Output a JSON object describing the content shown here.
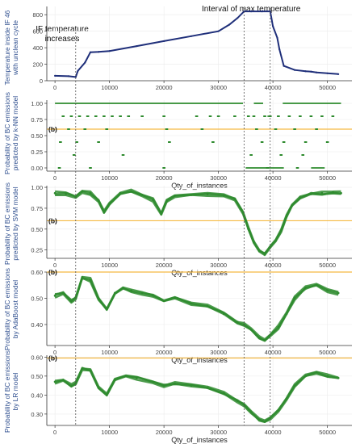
{
  "annotations": {
    "if_temperature": "IF temperature increases",
    "max_temperature": "Interval of max temperature"
  },
  "markers": {
    "b_label": "(b)",
    "if_line_x": 3800,
    "max_start_x": 34700,
    "max_end_x": 39500
  },
  "colors": {
    "temperature_line": "#1f2f7a",
    "probability_points": "#2e8b2e",
    "threshold": "#f5b942",
    "ylabel": "#2f4f8f",
    "marker_lines": "#555555"
  },
  "chart_data": [
    {
      "type": "line",
      "xlabel": "",
      "ylabel": "Temperature inside IF 46 with unclean cycle",
      "xlim": [
        -1500,
        54500
      ],
      "ylim": [
        0,
        900
      ],
      "xticks": [
        0,
        10000,
        20000,
        30000,
        40000,
        50000
      ],
      "yticks": [
        0,
        200,
        400,
        600,
        800
      ],
      "series": [
        {
          "x": [
            0,
            2500,
            3800,
            4200,
            5500,
            6500,
            8000,
            10000,
            15000,
            20000,
            25000,
            30000,
            32000,
            33500,
            34700,
            36000,
            38000,
            39500,
            40000,
            40800,
            41200,
            42000,
            44000,
            46000,
            47000,
            48000,
            50000,
            52000
          ],
          "y": [
            60,
            55,
            45,
            120,
            220,
            345,
            350,
            360,
            420,
            480,
            540,
            600,
            680,
            760,
            840,
            840,
            840,
            840,
            660,
            520,
            380,
            180,
            130,
            115,
            110,
            100,
            90,
            80
          ]
        }
      ]
    },
    {
      "type": "scatter",
      "xlabel": "Qty_of_instances",
      "ylabel": "Probability of BC emissions predicted by k-NN model",
      "xlim": [
        -1500,
        54500
      ],
      "ylim": [
        -0.05,
        1.05
      ],
      "xticks": [
        0,
        10000,
        20000,
        30000,
        40000,
        50000
      ],
      "yticks": [
        0.0,
        0.25,
        0.5,
        0.75,
        1.0
      ],
      "threshold": 0.6,
      "label": "(b)",
      "segments": [
        {
          "x0": 0,
          "x1": 34500,
          "y": 1.0
        },
        {
          "x0": 36500,
          "x1": 38200,
          "y": 1.0
        },
        {
          "x0": 41800,
          "x1": 52500,
          "y": 1.0
        },
        {
          "x0": 39000,
          "x1": 39400,
          "y": 0.8
        },
        {
          "x0": 35000,
          "x1": 42000,
          "y": 0.0
        },
        {
          "x0": 47000,
          "x1": 49500,
          "y": 0.0
        }
      ],
      "points": {
        "x": [
          1500,
          3000,
          4500,
          6000,
          7500,
          9000,
          10500,
          12000,
          13500,
          16000,
          20000,
          26000,
          28500,
          30000,
          33000,
          35500,
          36500,
          38500,
          39500,
          41000,
          43000,
          45000,
          47000,
          49000,
          51000,
          2500,
          5500,
          9500,
          20500,
          27000,
          37000,
          40500,
          44000,
          48000,
          1000,
          4000,
          8000,
          21000,
          29000,
          38000,
          42000,
          46000,
          50000,
          3500,
          12500,
          36000,
          41500,
          45500,
          800,
          6500,
          20000,
          39000,
          44500
        ],
        "y": [
          0.8,
          0.8,
          0.8,
          0.8,
          0.8,
          0.8,
          0.8,
          0.8,
          0.8,
          0.8,
          0.8,
          0.8,
          0.8,
          0.8,
          0.8,
          0.8,
          0.8,
          0.8,
          0.8,
          0.8,
          0.8,
          0.8,
          0.8,
          0.8,
          0.8,
          0.6,
          0.6,
          0.6,
          0.6,
          0.6,
          0.6,
          0.6,
          0.6,
          0.6,
          0.4,
          0.4,
          0.4,
          0.4,
          0.4,
          0.4,
          0.4,
          0.4,
          0.4,
          0.2,
          0.2,
          0.2,
          0.2,
          0.2,
          0.0,
          0.0,
          0.0,
          0.0,
          0.0
        ]
      }
    },
    {
      "type": "line",
      "xlabel": "Qty_of_instances",
      "ylabel": "Probability of BC emissions predicted by SVM model",
      "xlim": [
        -1500,
        54500
      ],
      "ylim": [
        0.15,
        1.02
      ],
      "xticks": [
        0,
        10000,
        20000,
        30000,
        40000,
        50000
      ],
      "yticks": [
        0.25,
        0.5,
        0.75,
        1.0
      ],
      "threshold": 0.6,
      "label": "(b)",
      "series": [
        {
          "x": [
            0,
            2000,
            3800,
            5000,
            6500,
            8000,
            9000,
            10000,
            12000,
            14000,
            16000,
            18000,
            19500,
            20500,
            22000,
            25000,
            28000,
            31000,
            33000,
            34500,
            35500,
            36500,
            37500,
            38500,
            39500,
            40500,
            41500,
            42500,
            43500,
            45000,
            47000,
            49000,
            51000,
            52500
          ],
          "y": [
            0.93,
            0.92,
            0.88,
            0.95,
            0.93,
            0.84,
            0.7,
            0.8,
            0.93,
            0.95,
            0.91,
            0.85,
            0.68,
            0.83,
            0.9,
            0.91,
            0.92,
            0.9,
            0.86,
            0.7,
            0.5,
            0.35,
            0.24,
            0.2,
            0.28,
            0.36,
            0.48,
            0.65,
            0.78,
            0.88,
            0.92,
            0.93,
            0.94,
            0.93
          ]
        }
      ]
    },
    {
      "type": "line",
      "xlabel": "Qty_of_instances",
      "ylabel": "Probability of BC emissions by AdaBoost model",
      "xlim": [
        -1500,
        54500
      ],
      "ylim": [
        0.32,
        0.6
      ],
      "xticks": [
        0,
        10000,
        20000,
        30000,
        40000,
        50000
      ],
      "yticks": [
        0.4,
        0.5,
        0.6
      ],
      "threshold": 0.6,
      "label": "(b)",
      "series": [
        {
          "x": [
            0,
            1500,
            3000,
            3800,
            5000,
            6500,
            8000,
            9500,
            11000,
            12500,
            14000,
            16000,
            18000,
            20000,
            22000,
            25000,
            28000,
            31000,
            33500,
            34700,
            36000,
            37500,
            38500,
            39500,
            41000,
            42500,
            44000,
            46000,
            48000,
            50000,
            52000
          ],
          "y": [
            0.51,
            0.52,
            0.49,
            0.5,
            0.58,
            0.57,
            0.5,
            0.46,
            0.52,
            0.54,
            0.53,
            0.52,
            0.51,
            0.49,
            0.5,
            0.48,
            0.47,
            0.44,
            0.41,
            0.4,
            0.38,
            0.35,
            0.34,
            0.36,
            0.39,
            0.44,
            0.5,
            0.54,
            0.55,
            0.53,
            0.52
          ]
        }
      ]
    },
    {
      "type": "line",
      "xlabel": "Qty_of_instances",
      "ylabel": "Probability of BC emissions by LR model",
      "xlim": [
        -1500,
        54500
      ],
      "ylim": [
        0.24,
        0.61
      ],
      "xticks": [
        0,
        10000,
        20000,
        30000,
        40000,
        50000
      ],
      "yticks": [
        0.3,
        0.4,
        0.5,
        0.6
      ],
      "threshold": 0.595,
      "label": "(b)",
      "series": [
        {
          "x": [
            0,
            1500,
            3000,
            3800,
            5000,
            6500,
            8000,
            9500,
            11000,
            13000,
            15000,
            18000,
            20000,
            22000,
            25000,
            28000,
            31000,
            33500,
            34700,
            36000,
            37500,
            38500,
            39500,
            41000,
            42500,
            44000,
            46000,
            48000,
            50000,
            52000
          ],
          "y": [
            0.47,
            0.48,
            0.45,
            0.46,
            0.54,
            0.53,
            0.44,
            0.4,
            0.48,
            0.5,
            0.49,
            0.47,
            0.45,
            0.46,
            0.45,
            0.44,
            0.41,
            0.37,
            0.35,
            0.31,
            0.27,
            0.26,
            0.28,
            0.32,
            0.38,
            0.45,
            0.5,
            0.52,
            0.5,
            0.49
          ]
        }
      ]
    }
  ]
}
